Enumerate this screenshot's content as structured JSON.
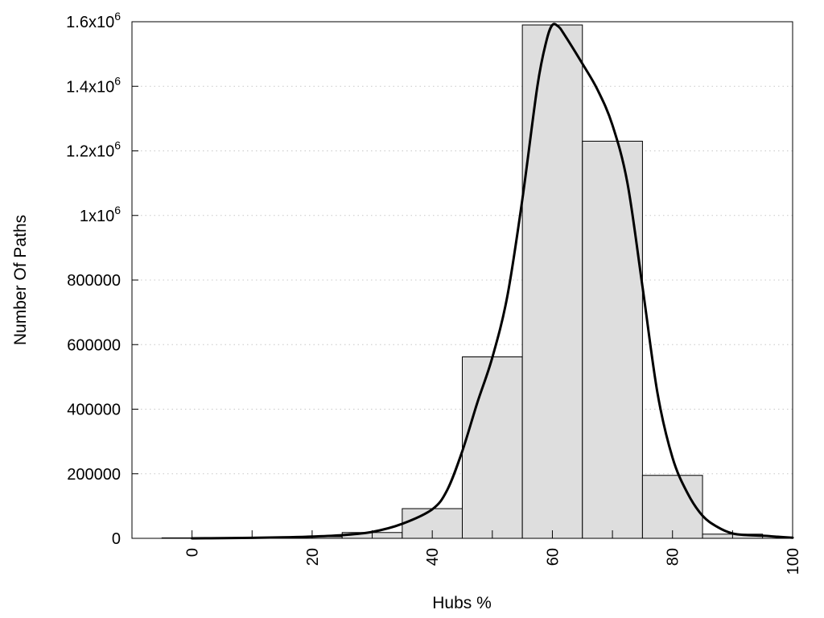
{
  "chart_data": {
    "type": "bar",
    "title": "",
    "xlabel": "Hubs %",
    "ylabel": "Number Of Paths",
    "xlim": [
      -10,
      100
    ],
    "ylim": [
      0,
      1600000
    ],
    "grid": "horizontal-dotted",
    "x_ticks": [
      {
        "value": 0,
        "label": "0"
      },
      {
        "value": 20,
        "label": "20"
      },
      {
        "value": 40,
        "label": "40"
      },
      {
        "value": 60,
        "label": "60"
      },
      {
        "value": 80,
        "label": "80"
      },
      {
        "value": 100,
        "label": "100"
      }
    ],
    "y_ticks": [
      {
        "value": 0,
        "label": "0"
      },
      {
        "value": 200000,
        "label": "200000"
      },
      {
        "value": 400000,
        "label": "400000"
      },
      {
        "value": 600000,
        "label": "600000"
      },
      {
        "value": 800000,
        "label": "800000"
      },
      {
        "value": 1000000,
        "label": "1x10",
        "exp": "6"
      },
      {
        "value": 1200000,
        "label": "1.2x10",
        "exp": "6"
      },
      {
        "value": 1400000,
        "label": "1.4x10",
        "exp": "6"
      },
      {
        "value": 1600000,
        "label": "1.6x10",
        "exp": "6"
      }
    ],
    "bars": [
      {
        "center": 0,
        "value": 1500
      },
      {
        "center": 10,
        "value": 2500
      },
      {
        "center": 20,
        "value": 5000
      },
      {
        "center": 30,
        "value": 18000
      },
      {
        "center": 40,
        "value": 92000
      },
      {
        "center": 50,
        "value": 562000
      },
      {
        "center": 60,
        "value": 1590000
      },
      {
        "center": 70,
        "value": 1230000
      },
      {
        "center": 80,
        "value": 195000
      },
      {
        "center": 90,
        "value": 13000
      }
    ],
    "bin_width": 10,
    "curve": {
      "x": [
        0,
        5,
        10,
        15,
        20,
        25,
        30,
        35,
        40,
        42.5,
        45,
        47.5,
        50,
        52.5,
        55,
        57.5,
        59,
        60,
        61,
        62,
        65,
        67.5,
        70,
        72.5,
        75,
        77.5,
        80,
        82.5,
        85,
        87.5,
        90,
        92.5,
        95,
        97.5,
        100
      ],
      "y": [
        0,
        500,
        1500,
        3000,
        5500,
        10000,
        20000,
        45000,
        90000,
        150000,
        270000,
        420000,
        560000,
        750000,
        1050000,
        1400000,
        1540000,
        1590000,
        1585000,
        1560000,
        1470000,
        1390000,
        1280000,
        1100000,
        780000,
        450000,
        250000,
        140000,
        70000,
        35000,
        15000,
        10000,
        8000,
        5000,
        2000
      ]
    }
  }
}
